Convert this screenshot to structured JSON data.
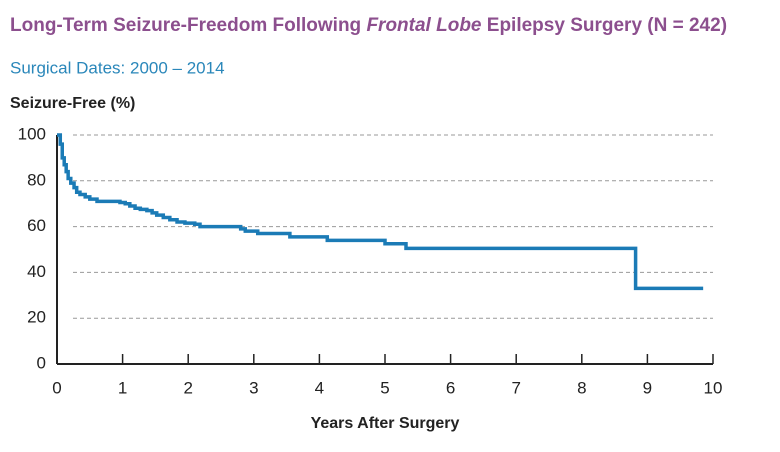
{
  "chart_data": {
    "type": "step",
    "title_parts": [
      "Long-Term Seizure-Freedom Following ",
      "Frontal Lobe",
      " Epilepsy Surgery (N = 242)"
    ],
    "subtitle": "Surgical Dates: 2000 – 2014",
    "y_label": "Seizure-Free (%)",
    "x_label": "Years After Surgery",
    "x": [
      0,
      0.05,
      0.08,
      0.11,
      0.14,
      0.17,
      0.21,
      0.26,
      0.3,
      0.35,
      0.43,
      0.5,
      0.61,
      0.88,
      0.96,
      1.04,
      1.11,
      1.19,
      1.27,
      1.37,
      1.45,
      1.52,
      1.62,
      1.72,
      1.83,
      1.95,
      2.1,
      2.18,
      2.8,
      2.87,
      3.06,
      3.55,
      4.12,
      5.0,
      5.32,
      8.82,
      9.85
    ],
    "series": [
      {
        "color": "#1b7bb6",
        "values": [
          100,
          96,
          90,
          87,
          84,
          81,
          79,
          77,
          75,
          74,
          73,
          72,
          71,
          71,
          70.5,
          70,
          69,
          68,
          67.5,
          67,
          66,
          65,
          64,
          63,
          62,
          61.5,
          61,
          60,
          59,
          58,
          57,
          55.5,
          54,
          52.5,
          50.5,
          33,
          33
        ]
      }
    ],
    "xlim": [
      0,
      10
    ],
    "xticks": [
      0,
      1,
      2,
      3,
      4,
      5,
      6,
      7,
      8,
      9,
      10
    ],
    "ylim": [
      0,
      100
    ],
    "yticks": [
      0,
      20,
      40,
      60,
      80,
      100
    ],
    "grid": true
  }
}
